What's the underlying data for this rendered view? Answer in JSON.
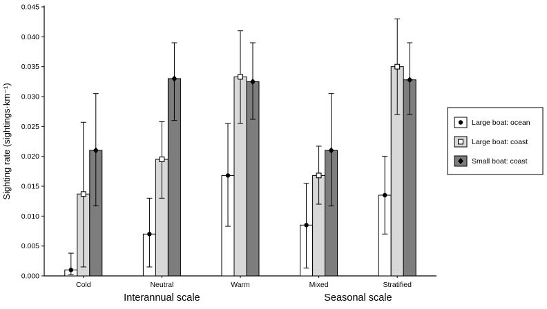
{
  "figure": {
    "background": "#ffffff",
    "axis_color": "#000000"
  },
  "chart_data": {
    "type": "bar",
    "title": "",
    "ylabel": "Sighting rate (sightings·km⁻¹)",
    "xlabel": "",
    "ylim": [
      0,
      0.045
    ],
    "ytick_step": 0.005,
    "ytick_decimals": 3,
    "grid": false,
    "legend_position": "right-outside",
    "categories": [
      "Cold",
      "Neutral",
      "Warm",
      "Mixed",
      "Stratified"
    ],
    "category_groups": [
      {
        "label": "Interannual scale",
        "category_indices": [
          0,
          1,
          2
        ]
      },
      {
        "label": "Seasonal scale",
        "category_indices": [
          3,
          4
        ]
      }
    ],
    "series": [
      {
        "name": "Large boat: ocean",
        "bar_color": "#ffffff",
        "marker": "filled-circle",
        "values": [
          0.001,
          0.007,
          0.0168,
          0.0085,
          0.0135
        ],
        "err_high": [
          0.0038,
          0.013,
          0.0255,
          0.0155,
          0.02
        ],
        "err_low": [
          0.0002,
          0.0015,
          0.0083,
          0.0013,
          0.007
        ]
      },
      {
        "name": "Large boat: coast",
        "bar_color": "#d8d8d8",
        "marker": "open-square",
        "values": [
          0.0137,
          0.0195,
          0.0333,
          0.0168,
          0.035
        ],
        "err_high": [
          0.0257,
          0.0258,
          0.041,
          0.0217,
          0.043
        ],
        "err_low": [
          0.0015,
          0.013,
          0.0255,
          0.012,
          0.027
        ]
      },
      {
        "name": "Small boat: coast",
        "bar_color": "#7d7d7d",
        "marker": "filled-diamond",
        "values": [
          0.021,
          0.033,
          0.0325,
          0.021,
          0.0328
        ],
        "err_high": [
          0.0305,
          0.039,
          0.039,
          0.0305,
          0.039
        ],
        "err_low": [
          0.0117,
          0.026,
          0.0262,
          0.0117,
          0.027
        ]
      }
    ]
  }
}
